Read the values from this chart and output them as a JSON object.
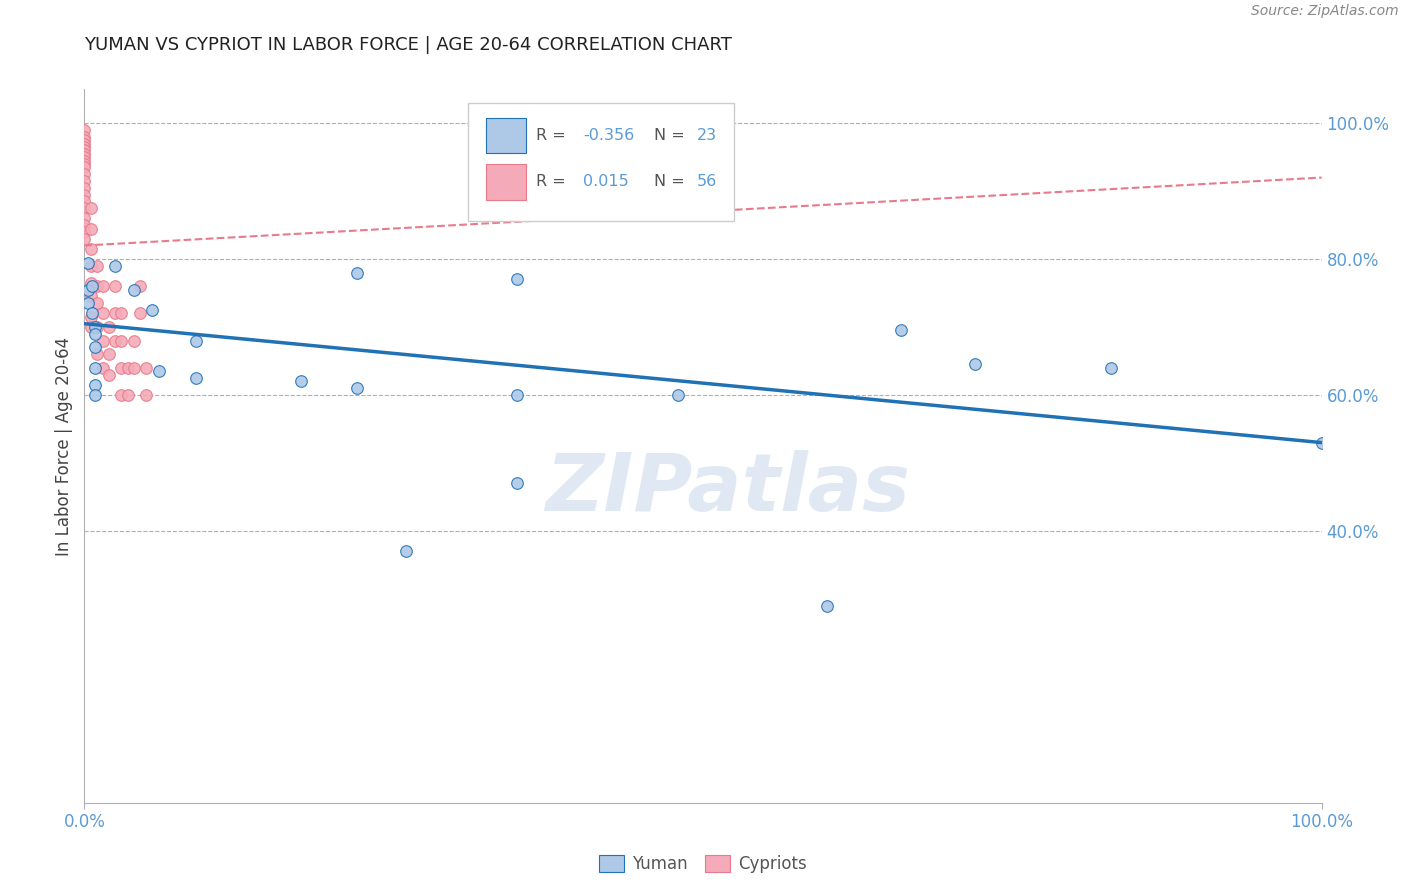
{
  "title": "YUMAN VS CYPRIOT IN LABOR FORCE | AGE 20-64 CORRELATION CHART",
  "source": "Source: ZipAtlas.com",
  "ylabel": "In Labor Force | Age 20-64",
  "watermark": "ZIPatlas",
  "xlim": [
    0.0,
    1.0
  ],
  "ylim": [
    0.0,
    1.05
  ],
  "yuman_points": [
    [
      0.003,
      0.795
    ],
    [
      0.003,
      0.755
    ],
    [
      0.003,
      0.735
    ],
    [
      0.006,
      0.76
    ],
    [
      0.006,
      0.72
    ],
    [
      0.009,
      0.7
    ],
    [
      0.009,
      0.69
    ],
    [
      0.009,
      0.67
    ],
    [
      0.009,
      0.64
    ],
    [
      0.009,
      0.615
    ],
    [
      0.009,
      0.6
    ],
    [
      0.025,
      0.79
    ],
    [
      0.04,
      0.755
    ],
    [
      0.055,
      0.725
    ],
    [
      0.06,
      0.635
    ],
    [
      0.09,
      0.68
    ],
    [
      0.09,
      0.625
    ],
    [
      0.175,
      0.62
    ],
    [
      0.22,
      0.78
    ],
    [
      0.22,
      0.61
    ],
    [
      0.26,
      0.37
    ],
    [
      0.35,
      0.77
    ],
    [
      0.35,
      0.6
    ],
    [
      0.35,
      0.47
    ],
    [
      0.48,
      0.6
    ],
    [
      0.6,
      0.29
    ],
    [
      0.66,
      0.695
    ],
    [
      0.72,
      0.645
    ],
    [
      0.83,
      0.64
    ],
    [
      1.0,
      0.53
    ]
  ],
  "cypriot_points": [
    [
      0.0,
      0.99
    ],
    [
      0.0,
      0.98
    ],
    [
      0.0,
      0.975
    ],
    [
      0.0,
      0.97
    ],
    [
      0.0,
      0.965
    ],
    [
      0.0,
      0.96
    ],
    [
      0.0,
      0.955
    ],
    [
      0.0,
      0.95
    ],
    [
      0.0,
      0.945
    ],
    [
      0.0,
      0.94
    ],
    [
      0.0,
      0.935
    ],
    [
      0.0,
      0.925
    ],
    [
      0.0,
      0.915
    ],
    [
      0.0,
      0.905
    ],
    [
      0.0,
      0.895
    ],
    [
      0.0,
      0.885
    ],
    [
      0.0,
      0.875
    ],
    [
      0.0,
      0.86
    ],
    [
      0.0,
      0.85
    ],
    [
      0.0,
      0.84
    ],
    [
      0.0,
      0.83
    ],
    [
      0.005,
      0.875
    ],
    [
      0.005,
      0.845
    ],
    [
      0.005,
      0.815
    ],
    [
      0.005,
      0.79
    ],
    [
      0.005,
      0.765
    ],
    [
      0.005,
      0.745
    ],
    [
      0.005,
      0.715
    ],
    [
      0.005,
      0.7
    ],
    [
      0.01,
      0.79
    ],
    [
      0.01,
      0.76
    ],
    [
      0.01,
      0.735
    ],
    [
      0.01,
      0.7
    ],
    [
      0.01,
      0.66
    ],
    [
      0.015,
      0.76
    ],
    [
      0.015,
      0.72
    ],
    [
      0.015,
      0.68
    ],
    [
      0.015,
      0.64
    ],
    [
      0.02,
      0.7
    ],
    [
      0.02,
      0.66
    ],
    [
      0.02,
      0.63
    ],
    [
      0.025,
      0.76
    ],
    [
      0.025,
      0.72
    ],
    [
      0.025,
      0.68
    ],
    [
      0.03,
      0.72
    ],
    [
      0.03,
      0.68
    ],
    [
      0.03,
      0.64
    ],
    [
      0.03,
      0.6
    ],
    [
      0.035,
      0.64
    ],
    [
      0.035,
      0.6
    ],
    [
      0.04,
      0.68
    ],
    [
      0.04,
      0.64
    ],
    [
      0.045,
      0.76
    ],
    [
      0.045,
      0.72
    ],
    [
      0.05,
      0.64
    ],
    [
      0.05,
      0.6
    ]
  ],
  "yuman_line_color": "#2171b5",
  "cypriot_line_color": "#e87a8a",
  "yuman_scatter_color": "#aec8e8",
  "cypriot_scatter_color": "#f4aab8",
  "cypriot_scatter_edge": "#e87a8a",
  "yuman_scatter_edge": "#2171b5",
  "grid_color": "#b0b0b0",
  "bg_color": "#ffffff",
  "title_color": "#222222",
  "axis_tick_color": "#5b9bd5",
  "ylabel_color": "#444444",
  "source_color": "#888888",
  "watermark_color": "#c8d8ea",
  "legend_R_color": "#5b9bd5",
  "legend_label_color": "#555555",
  "legend_N_color": "#5b9bd5",
  "bottom_legend_labels": [
    "Yuman",
    "Cypriots"
  ],
  "yuman_line_start_y": 0.705,
  "yuman_line_end_y": 0.53,
  "cypriot_line_start_y": 0.82,
  "cypriot_line_end_y": 0.92
}
